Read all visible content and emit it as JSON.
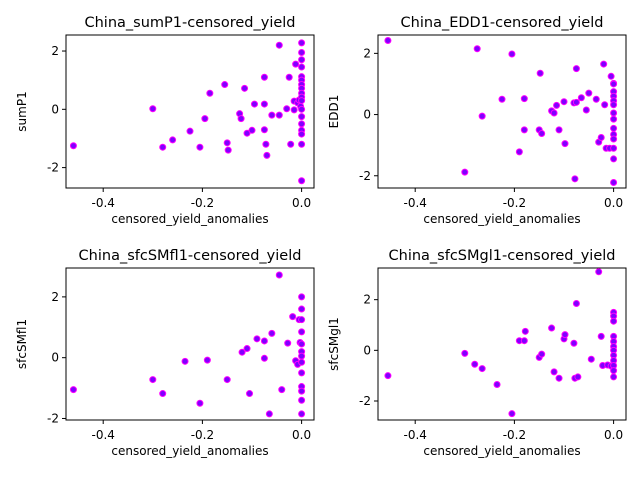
{
  "chart_data": [
    {
      "type": "scatter",
      "title": "China_sumP1-censored_yield",
      "xlabel": "censored_yield_anomalies",
      "ylabel": "sumP1",
      "xlim": [
        -0.475,
        0.025
      ],
      "ylim": [
        -2.7,
        2.55
      ],
      "xticks": [
        "-0.4",
        "-0.2",
        "0.0"
      ],
      "yticks": [
        "-2",
        "0",
        "2"
      ],
      "grid": false,
      "marker_face": "#8000ff",
      "marker_edge": "#ff00ff",
      "points": [
        [
          -0.46,
          -1.25
        ],
        [
          -0.3,
          0.02
        ],
        [
          -0.28,
          -1.3
        ],
        [
          -0.26,
          -1.05
        ],
        [
          -0.225,
          -0.75
        ],
        [
          -0.205,
          -1.3
        ],
        [
          -0.195,
          -0.32
        ],
        [
          -0.185,
          0.55
        ],
        [
          -0.155,
          0.85
        ],
        [
          -0.15,
          -1.15
        ],
        [
          -0.148,
          -1.4
        ],
        [
          -0.125,
          -0.15
        ],
        [
          -0.122,
          -0.32
        ],
        [
          -0.115,
          0.72
        ],
        [
          -0.11,
          -0.82
        ],
        [
          -0.1,
          -0.72
        ],
        [
          -0.095,
          0.18
        ],
        [
          -0.075,
          0.18
        ],
        [
          -0.075,
          1.1
        ],
        [
          -0.075,
          -0.7
        ],
        [
          -0.072,
          -1.2
        ],
        [
          -0.07,
          -1.58
        ],
        [
          -0.06,
          -0.2
        ],
        [
          -0.045,
          -0.2
        ],
        [
          -0.045,
          2.2
        ],
        [
          -0.03,
          0.02
        ],
        [
          -0.025,
          1.1
        ],
        [
          -0.022,
          -1.2
        ],
        [
          -0.015,
          -0.02
        ],
        [
          -0.015,
          0.28
        ],
        [
          -0.012,
          1.55
        ],
        [
          -0.008,
          0.22
        ],
        [
          -0.005,
          0.32
        ],
        [
          -0.002,
          0.1
        ],
        [
          0.0,
          2.28
        ],
        [
          0.0,
          1.95
        ],
        [
          0.0,
          1.7
        ],
        [
          0.0,
          1.45
        ],
        [
          0.0,
          1.12
        ],
        [
          0.0,
          1.0
        ],
        [
          0.0,
          0.85
        ],
        [
          0.0,
          0.72
        ],
        [
          0.0,
          0.55
        ],
        [
          0.0,
          0.42
        ],
        [
          0.0,
          0.3
        ],
        [
          0.0,
          0.0
        ],
        [
          0.0,
          -0.25
        ],
        [
          0.0,
          -0.5
        ],
        [
          0.0,
          -0.72
        ],
        [
          0.0,
          -0.85
        ],
        [
          0.0,
          -1.2
        ],
        [
          0.0,
          -2.45
        ]
      ]
    },
    {
      "type": "scatter",
      "title": "China_EDD1-censored_yield",
      "xlabel": "censored_yield_anomalies",
      "ylabel": "EDD1",
      "xlim": [
        -0.475,
        0.025
      ],
      "ylim": [
        -2.4,
        2.6
      ],
      "xticks": [
        "-0.4",
        "-0.2",
        "0.0"
      ],
      "yticks": [
        "-2",
        "0",
        "2"
      ],
      "grid": false,
      "marker_face": "#8000ff",
      "marker_edge": "#ff00ff",
      "points": [
        [
          -0.455,
          2.42
        ],
        [
          -0.3,
          -1.88
        ],
        [
          -0.275,
          2.15
        ],
        [
          -0.265,
          -0.05
        ],
        [
          -0.225,
          0.5
        ],
        [
          -0.205,
          1.98
        ],
        [
          -0.19,
          -1.22
        ],
        [
          -0.18,
          -0.5
        ],
        [
          -0.18,
          0.52
        ],
        [
          -0.15,
          -0.5
        ],
        [
          -0.148,
          1.35
        ],
        [
          -0.145,
          -0.62
        ],
        [
          -0.125,
          0.12
        ],
        [
          -0.12,
          0.05
        ],
        [
          -0.115,
          0.3
        ],
        [
          -0.11,
          -0.5
        ],
        [
          -0.1,
          0.42
        ],
        [
          -0.098,
          -0.95
        ],
        [
          -0.08,
          0.38
        ],
        [
          -0.078,
          -2.1
        ],
        [
          -0.075,
          1.5
        ],
        [
          -0.075,
          0.4
        ],
        [
          -0.065,
          0.55
        ],
        [
          -0.055,
          0.15
        ],
        [
          -0.05,
          0.7
        ],
        [
          -0.035,
          0.5
        ],
        [
          -0.03,
          -0.9
        ],
        [
          -0.025,
          -0.75
        ],
        [
          -0.02,
          1.65
        ],
        [
          -0.018,
          0.32
        ],
        [
          -0.015,
          -1.1
        ],
        [
          -0.008,
          -1.1
        ],
        [
          -0.005,
          1.25
        ],
        [
          0.0,
          1.02
        ],
        [
          0.0,
          1.0
        ],
        [
          0.0,
          0.75
        ],
        [
          0.0,
          0.6
        ],
        [
          0.0,
          0.45
        ],
        [
          0.0,
          0.32
        ],
        [
          0.0,
          0.05
        ],
        [
          0.0,
          -0.15
        ],
        [
          0.0,
          -0.45
        ],
        [
          0.0,
          -0.65
        ],
        [
          0.0,
          -0.8
        ],
        [
          0.0,
          -1.1
        ],
        [
          0.0,
          -1.45
        ],
        [
          0.0,
          -2.22
        ]
      ]
    },
    {
      "type": "scatter",
      "title": "China_sfcSMfl1-censored_yield",
      "xlabel": "censored_yield_anomalies",
      "ylabel": "sfcSMfl1",
      "xlim": [
        -0.475,
        0.025
      ],
      "ylim": [
        -2.05,
        2.95
      ],
      "xticks": [
        "-0.4",
        "-0.2",
        "0.0"
      ],
      "yticks": [
        "-2",
        "0",
        "2"
      ],
      "grid": false,
      "marker_face": "#8000ff",
      "marker_edge": "#ff00ff",
      "points": [
        [
          -0.46,
          -1.05
        ],
        [
          -0.3,
          -0.72
        ],
        [
          -0.28,
          -1.18
        ],
        [
          -0.235,
          -0.12
        ],
        [
          -0.205,
          -1.5
        ],
        [
          -0.19,
          -0.08
        ],
        [
          -0.15,
          -0.72
        ],
        [
          -0.12,
          0.18
        ],
        [
          -0.11,
          0.3
        ],
        [
          -0.105,
          -1.18
        ],
        [
          -0.09,
          0.62
        ],
        [
          -0.075,
          0.55
        ],
        [
          -0.075,
          -0.02
        ],
        [
          -0.065,
          -1.85
        ],
        [
          -0.06,
          0.8
        ],
        [
          -0.045,
          2.72
        ],
        [
          -0.04,
          -1.05
        ],
        [
          -0.028,
          0.48
        ],
        [
          -0.018,
          1.35
        ],
        [
          -0.012,
          -0.1
        ],
        [
          -0.008,
          -0.22
        ],
        [
          -0.005,
          1.25
        ],
        [
          -0.003,
          0.5
        ],
        [
          0.0,
          2.0
        ],
        [
          0.0,
          1.6
        ],
        [
          0.0,
          1.25
        ],
        [
          0.0,
          0.85
        ],
        [
          0.0,
          0.45
        ],
        [
          0.0,
          0.2
        ],
        [
          0.0,
          0.05
        ],
        [
          0.0,
          -0.15
        ],
        [
          0.0,
          -0.5
        ],
        [
          0.0,
          -0.95
        ],
        [
          0.0,
          -1.1
        ],
        [
          0.0,
          -1.4
        ],
        [
          0.0,
          -1.85
        ]
      ]
    },
    {
      "type": "scatter",
      "title": "China_sfcSMgl1-censored_yield",
      "xlabel": "censored_yield_anomalies",
      "ylabel": "sfcSMgl1",
      "xlim": [
        -0.475,
        0.025
      ],
      "ylim": [
        -2.75,
        3.25
      ],
      "xticks": [
        "-0.4",
        "-0.2",
        "0.0"
      ],
      "yticks": [
        "-2",
        "0",
        "2"
      ],
      "grid": false,
      "marker_face": "#8000ff",
      "marker_edge": "#ff00ff",
      "points": [
        [
          -0.455,
          -1.0
        ],
        [
          -0.3,
          -0.12
        ],
        [
          -0.28,
          -0.55
        ],
        [
          -0.265,
          -0.72
        ],
        [
          -0.235,
          -1.35
        ],
        [
          -0.205,
          -2.5
        ],
        [
          -0.19,
          0.38
        ],
        [
          -0.18,
          0.38
        ],
        [
          -0.178,
          0.75
        ],
        [
          -0.15,
          -0.28
        ],
        [
          -0.145,
          -0.15
        ],
        [
          -0.125,
          0.88
        ],
        [
          -0.12,
          -0.85
        ],
        [
          -0.11,
          -1.1
        ],
        [
          -0.1,
          0.45
        ],
        [
          -0.098,
          0.62
        ],
        [
          -0.08,
          0.28
        ],
        [
          -0.078,
          -1.1
        ],
        [
          -0.075,
          1.85
        ],
        [
          -0.072,
          -1.05
        ],
        [
          -0.045,
          -0.35
        ],
        [
          -0.03,
          3.1
        ],
        [
          -0.025,
          0.55
        ],
        [
          -0.022,
          -0.6
        ],
        [
          -0.012,
          -0.58
        ],
        [
          -0.005,
          -0.62
        ],
        [
          0.0,
          1.5
        ],
        [
          0.0,
          1.35
        ],
        [
          0.0,
          1.15
        ],
        [
          0.0,
          0.55
        ],
        [
          0.0,
          0.35
        ],
        [
          0.0,
          0.15
        ],
        [
          0.0,
          0.0
        ],
        [
          0.0,
          -0.2
        ],
        [
          0.0,
          -0.4
        ],
        [
          0.0,
          -0.6
        ],
        [
          0.0,
          -0.8
        ],
        [
          0.0,
          -1.05
        ]
      ]
    }
  ]
}
